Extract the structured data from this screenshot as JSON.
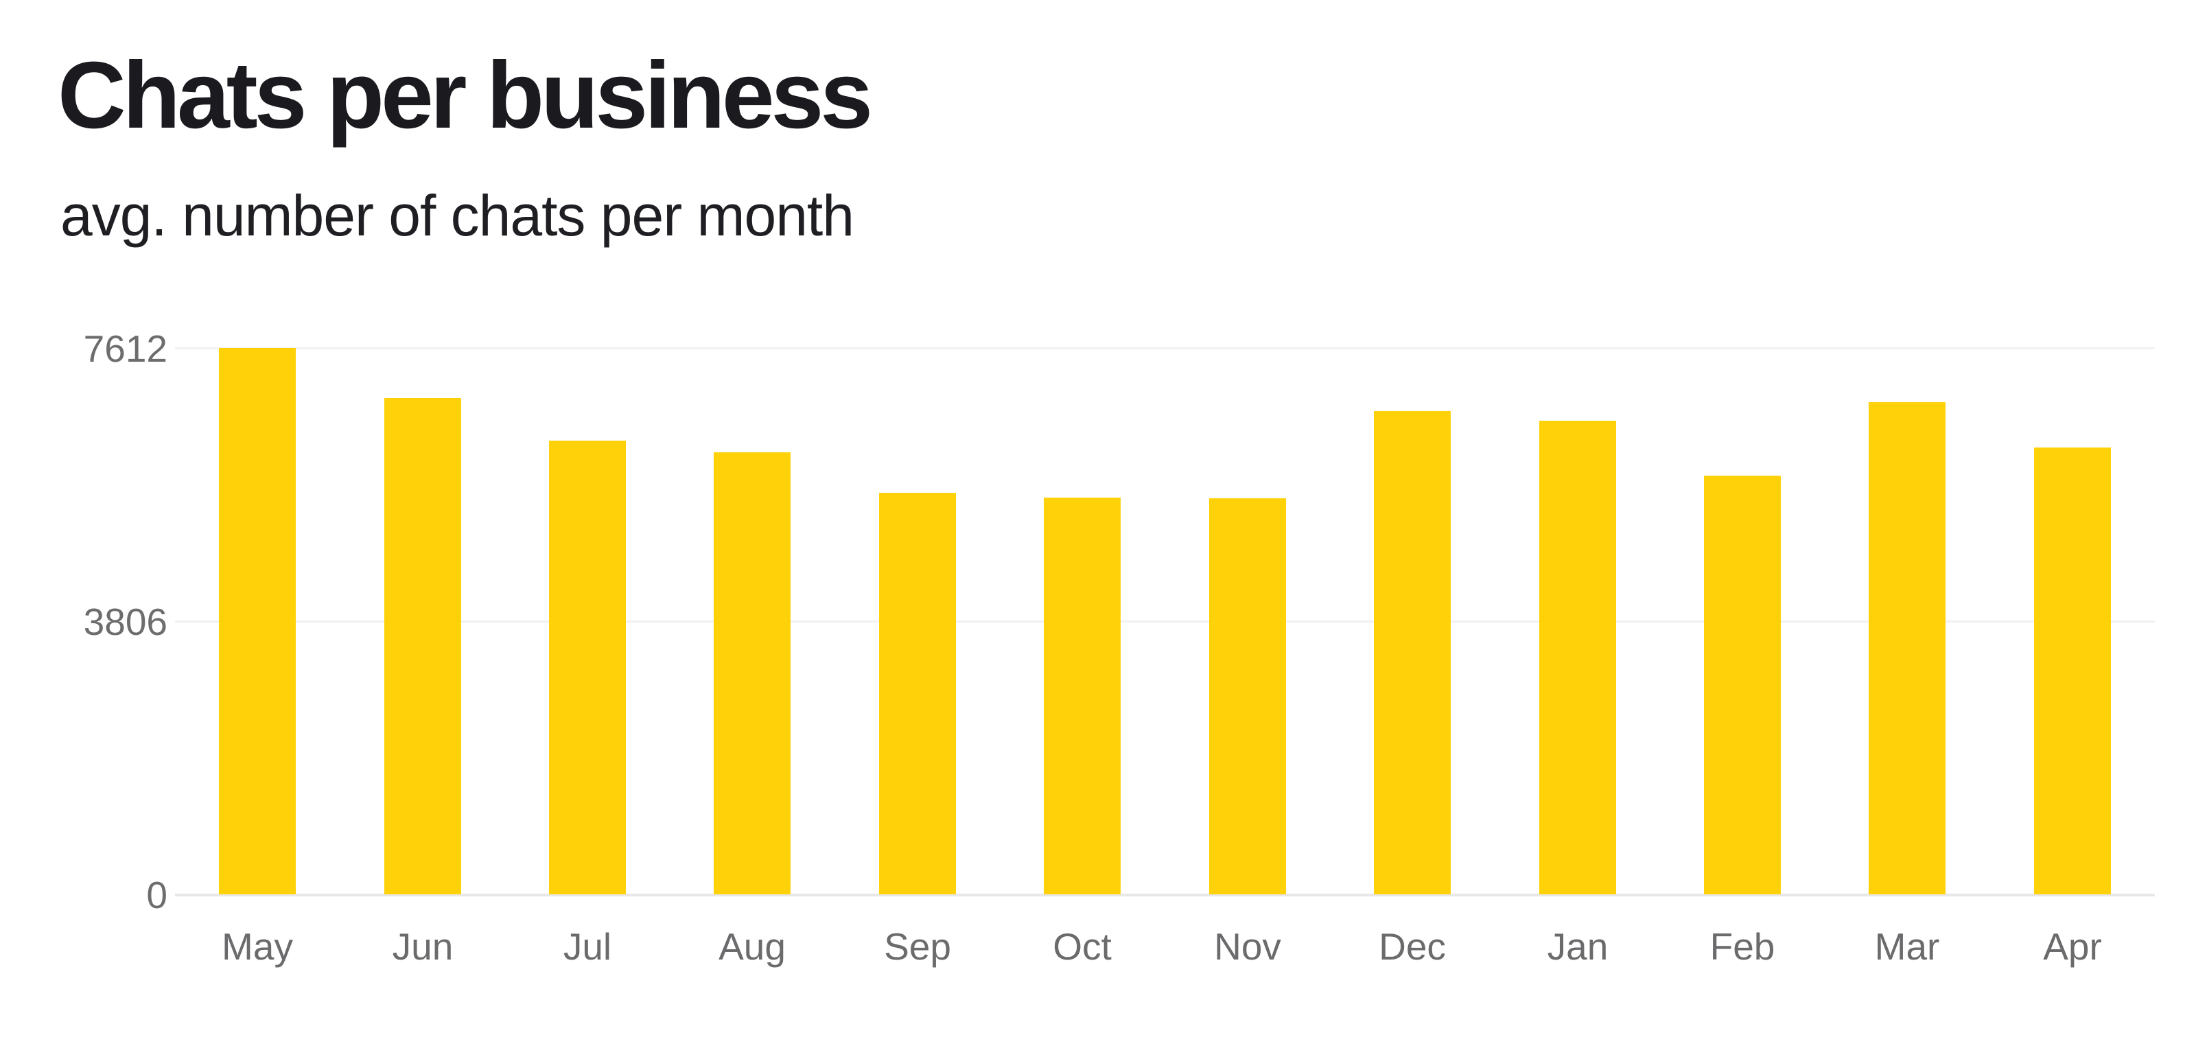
{
  "header": {
    "title": "Chats per business",
    "subtitle": "avg. number of chats per month"
  },
  "chart_data": {
    "type": "bar",
    "title": "Chats per business",
    "subtitle": "avg. number of chats per month",
    "categories": [
      "May",
      "Jun",
      "Jul",
      "Aug",
      "Sep",
      "Oct",
      "Nov",
      "Dec",
      "Jan",
      "Feb",
      "Mar",
      "Apr"
    ],
    "values": [
      7612,
      6910,
      6320,
      6160,
      5590,
      5530,
      5520,
      6730,
      6600,
      5830,
      6860,
      6230
    ],
    "xlabel": "",
    "ylabel": "",
    "ylim": [
      0,
      7612
    ],
    "yticks": [
      0,
      3806,
      7612
    ],
    "grid": true,
    "legend": false,
    "bar_color": "#ffd108",
    "gridline_color": "#f1f1f1",
    "baseline_color": "#e8e8e8",
    "tick_label_color": "#6d6d6f",
    "title_color": "#1a1a1f",
    "background": "#ffffff"
  }
}
